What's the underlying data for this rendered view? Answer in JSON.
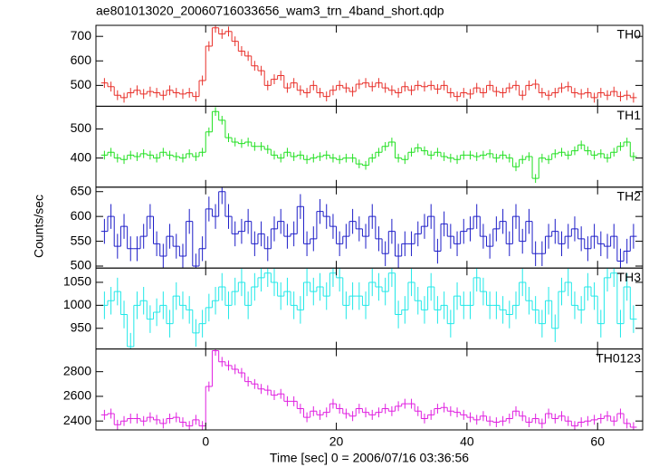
{
  "title": "ae801013020_20060716033656_wam3_trn_4band_short.qdp",
  "ylabel": "Counts/sec",
  "xlabel": "Time [sec] 0 = 2006/07/16 03:36:56",
  "chart_data": [
    {
      "type": "step",
      "name": "TH0",
      "color": "#e8302a",
      "error": 20,
      "x": [
        -15.5,
        -14.5,
        -13.5,
        -12.5,
        -11.5,
        -10.5,
        -9.5,
        -8.5,
        -7.5,
        -6.5,
        -5.5,
        -4.5,
        -3.5,
        -2.5,
        -1.5,
        -0.5,
        0.5,
        1.5,
        2.5,
        3.5,
        4.5,
        5.5,
        6.5,
        7.5,
        8.5,
        9.5,
        10.5,
        11.5,
        12.5,
        13.5,
        14.5,
        15.5,
        16.5,
        17.5,
        18.5,
        19.5,
        20.5,
        21.5,
        22.5,
        23.5,
        24.5,
        25.5,
        26.5,
        27.5,
        28.5,
        29.5,
        30.5,
        31.5,
        32.5,
        33.5,
        34.5,
        35.5,
        36.5,
        37.5,
        38.5,
        39.5,
        40.5,
        41.5,
        42.5,
        43.5,
        44.5,
        45.5,
        46.5,
        47.5,
        48.5,
        49.5,
        50.5,
        51.5,
        52.5,
        53.5,
        54.5,
        55.5,
        56.5,
        57.5,
        58.5,
        59.5,
        60.5,
        61.5,
        62.5,
        63.5,
        64.5,
        65.5
      ],
      "values": [
        510,
        495,
        460,
        450,
        470,
        480,
        465,
        475,
        470,
        460,
        480,
        470,
        465,
        470,
        455,
        520,
        660,
        735,
        710,
        720,
        680,
        640,
        620,
        580,
        560,
        500,
        525,
        540,
        490,
        510,
        480,
        470,
        500,
        470,
        455,
        480,
        500,
        490,
        475,
        505,
        510,
        495,
        510,
        490,
        480,
        470,
        495,
        480,
        500,
        495,
        500,
        485,
        500,
        470,
        455,
        470,
        465,
        490,
        470,
        500,
        475,
        470,
        490,
        500,
        460,
        500,
        505,
        470,
        460,
        470,
        490,
        495,
        470,
        465,
        470,
        450,
        470,
        460,
        475,
        455,
        460,
        450
      ],
      "xlim": [
        -16.8,
        66.9
      ],
      "xticks": [
        0,
        20,
        40,
        60
      ],
      "ylim": [
        415,
        745
      ],
      "yticks": [
        500,
        600,
        700
      ]
    },
    {
      "type": "step",
      "name": "TH1",
      "color": "#22e022",
      "error": 15,
      "x": [
        -15.5,
        -14.5,
        -13.5,
        -12.5,
        -11.5,
        -10.5,
        -9.5,
        -8.5,
        -7.5,
        -6.5,
        -5.5,
        -4.5,
        -3.5,
        -2.5,
        -1.5,
        -0.5,
        0.5,
        1.5,
        2.5,
        3.5,
        4.5,
        5.5,
        6.5,
        7.5,
        8.5,
        9.5,
        10.5,
        11.5,
        12.5,
        13.5,
        14.5,
        15.5,
        16.5,
        17.5,
        18.5,
        19.5,
        20.5,
        21.5,
        22.5,
        23.5,
        24.5,
        25.5,
        26.5,
        27.5,
        28.5,
        29.5,
        30.5,
        31.5,
        32.5,
        33.5,
        34.5,
        35.5,
        36.5,
        37.5,
        38.5,
        39.5,
        40.5,
        41.5,
        42.5,
        43.5,
        44.5,
        45.5,
        46.5,
        47.5,
        48.5,
        49.5,
        50.5,
        51.5,
        52.5,
        53.5,
        54.5,
        55.5,
        56.5,
        57.5,
        58.5,
        59.5,
        60.5,
        61.5,
        62.5,
        63.5,
        64.5,
        65.5
      ],
      "values": [
        410,
        420,
        400,
        395,
        410,
        405,
        415,
        410,
        400,
        420,
        410,
        405,
        400,
        415,
        405,
        420,
        490,
        560,
        530,
        470,
        455,
        450,
        455,
        440,
        440,
        430,
        410,
        400,
        420,
        405,
        410,
        395,
        400,
        405,
        410,
        400,
        395,
        400,
        400,
        380,
        375,
        400,
        420,
        440,
        455,
        400,
        395,
        420,
        435,
        425,
        410,
        420,
        405,
        400,
        395,
        410,
        410,
        405,
        410,
        415,
        400,
        410,
        400,
        370,
        395,
        405,
        330,
        400,
        395,
        415,
        420,
        410,
        425,
        445,
        425,
        410,
        415,
        400,
        420,
        440,
        455,
        405
      ],
      "xlim": [
        -16.8,
        66.9
      ],
      "xticks": [
        0,
        20,
        40,
        60
      ],
      "ylim": [
        300,
        578
      ],
      "yticks": [
        400,
        500
      ]
    },
    {
      "type": "step",
      "name": "TH2",
      "color": "#1e1ec8",
      "error": 25,
      "x": [
        -15.5,
        -14.5,
        -13.5,
        -12.5,
        -11.5,
        -10.5,
        -9.5,
        -8.5,
        -7.5,
        -6.5,
        -5.5,
        -4.5,
        -3.5,
        -2.5,
        -1.5,
        -0.5,
        0.5,
        1.5,
        2.5,
        3.5,
        4.5,
        5.5,
        6.5,
        7.5,
        8.5,
        9.5,
        10.5,
        11.5,
        12.5,
        13.5,
        14.5,
        15.5,
        16.5,
        17.5,
        18.5,
        19.5,
        20.5,
        21.5,
        22.5,
        23.5,
        24.5,
        25.5,
        26.5,
        27.5,
        28.5,
        29.5,
        30.5,
        31.5,
        32.5,
        33.5,
        34.5,
        35.5,
        36.5,
        37.5,
        38.5,
        39.5,
        40.5,
        41.5,
        42.5,
        43.5,
        44.5,
        45.5,
        46.5,
        47.5,
        48.5,
        49.5,
        50.5,
        51.5,
        52.5,
        53.5,
        54.5,
        55.5,
        56.5,
        57.5,
        58.5,
        59.5,
        60.5,
        61.5,
        62.5,
        63.5,
        64.5,
        65.5
      ],
      "values": [
        570,
        600,
        540,
        580,
        535,
        535,
        560,
        600,
        545,
        520,
        560,
        540,
        520,
        590,
        500,
        535,
        615,
        600,
        650,
        600,
        565,
        570,
        590,
        545,
        565,
        535,
        575,
        590,
        560,
        565,
        620,
        545,
        555,
        610,
        600,
        580,
        545,
        560,
        590,
        575,
        560,
        600,
        555,
        525,
        570,
        520,
        545,
        545,
        565,
        580,
        600,
        530,
        585,
        560,
        545,
        570,
        575,
        600,
        560,
        540,
        575,
        590,
        545,
        600,
        550,
        590,
        525,
        525,
        560,
        570,
        545,
        560,
        575,
        555,
        535,
        560,
        545,
        540,
        560,
        510,
        530,
        560
      ],
      "xlim": [
        -16.8,
        66.9
      ],
      "xticks": [
        0,
        20,
        40,
        60
      ],
      "ylim": [
        496,
        659
      ],
      "yticks": [
        500,
        550,
        600,
        650
      ]
    },
    {
      "type": "step",
      "name": "TH3",
      "color": "#20e8e8",
      "error": 30,
      "x": [
        -15.5,
        -14.5,
        -13.5,
        -12.5,
        -11.5,
        -10.5,
        -9.5,
        -8.5,
        -7.5,
        -6.5,
        -5.5,
        -4.5,
        -3.5,
        -2.5,
        -1.5,
        -0.5,
        0.5,
        1.5,
        2.5,
        3.5,
        4.5,
        5.5,
        6.5,
        7.5,
        8.5,
        9.5,
        10.5,
        11.5,
        12.5,
        13.5,
        14.5,
        15.5,
        16.5,
        17.5,
        18.5,
        19.5,
        20.5,
        21.5,
        22.5,
        23.5,
        24.5,
        25.5,
        26.5,
        27.5,
        28.5,
        29.5,
        30.5,
        31.5,
        32.5,
        33.5,
        34.5,
        35.5,
        36.5,
        37.5,
        38.5,
        39.5,
        40.5,
        41.5,
        42.5,
        43.5,
        44.5,
        45.5,
        46.5,
        47.5,
        48.5,
        49.5,
        50.5,
        51.5,
        52.5,
        53.5,
        54.5,
        55.5,
        56.5,
        57.5,
        58.5,
        59.5,
        60.5,
        61.5,
        62.5,
        63.5,
        64.5,
        65.5
      ],
      "values": [
        1000,
        1010,
        1030,
        980,
        910,
        1000,
        1010,
        970,
        985,
        1000,
        960,
        1020,
        1000,
        990,
        940,
        960,
        995,
        1010,
        1040,
        1000,
        1030,
        1050,
        1000,
        1040,
        1060,
        1070,
        1050,
        1020,
        1030,
        1000,
        990,
        1050,
        1030,
        1040,
        1020,
        1070,
        1060,
        1000,
        1020,
        1020,
        1000,
        1050,
        1040,
        1030,
        1070,
        980,
        990,
        1050,
        1010,
        990,
        1040,
        990,
        1000,
        960,
        1020,
        1000,
        1000,
        1060,
        1030,
        1000,
        1000,
        990,
        980,
        1000,
        1050,
        1010,
        990,
        960,
        1010,
        950,
        1030,
        1050,
        1000,
        990,
        1040,
        1020,
        960,
        1060,
        1070,
        960,
        1040,
        970
      ],
      "xlim": [
        -16.8,
        66.9
      ],
      "xticks": [
        0,
        20,
        40,
        60
      ],
      "ylim": [
        905,
        1081
      ],
      "yticks": [
        950,
        1000,
        1050
      ]
    },
    {
      "type": "step",
      "name": "TH0123",
      "color": "#e020e0",
      "error": 40,
      "x": [
        -15.5,
        -14.5,
        -13.5,
        -12.5,
        -11.5,
        -10.5,
        -9.5,
        -8.5,
        -7.5,
        -6.5,
        -5.5,
        -4.5,
        -3.5,
        -2.5,
        -1.5,
        -0.5,
        0.5,
        1.5,
        2.5,
        3.5,
        4.5,
        5.5,
        6.5,
        7.5,
        8.5,
        9.5,
        10.5,
        11.5,
        12.5,
        13.5,
        14.5,
        15.5,
        16.5,
        17.5,
        18.5,
        19.5,
        20.5,
        21.5,
        22.5,
        23.5,
        24.5,
        25.5,
        26.5,
        27.5,
        28.5,
        29.5,
        30.5,
        31.5,
        32.5,
        33.5,
        34.5,
        35.5,
        36.5,
        37.5,
        38.5,
        39.5,
        40.5,
        41.5,
        42.5,
        43.5,
        44.5,
        45.5,
        46.5,
        47.5,
        48.5,
        49.5,
        50.5,
        51.5,
        52.5,
        53.5,
        54.5,
        55.5,
        56.5,
        57.5,
        58.5,
        59.5,
        60.5,
        61.5,
        62.5,
        63.5,
        64.5,
        65.5
      ],
      "values": [
        2450,
        2460,
        2370,
        2400,
        2420,
        2420,
        2400,
        2430,
        2410,
        2380,
        2420,
        2430,
        2390,
        2360,
        2410,
        2360,
        2680,
        2970,
        2880,
        2850,
        2820,
        2790,
        2720,
        2700,
        2660,
        2650,
        2610,
        2620,
        2560,
        2560,
        2500,
        2430,
        2480,
        2450,
        2470,
        2540,
        2500,
        2460,
        2440,
        2500,
        2470,
        2450,
        2470,
        2500,
        2480,
        2520,
        2540,
        2540,
        2480,
        2420,
        2450,
        2500,
        2510,
        2480,
        2470,
        2450,
        2430,
        2410,
        2440,
        2400,
        2390,
        2400,
        2420,
        2480,
        2440,
        2390,
        2420,
        2380,
        2460,
        2420,
        2440,
        2400,
        2360,
        2390,
        2400,
        2410,
        2420,
        2440,
        2400,
        2460,
        2380,
        2350
      ],
      "xlim": [
        -16.8,
        66.9
      ],
      "xticks": [
        0,
        20,
        40,
        60
      ],
      "ylim": [
        2328,
        2984
      ],
      "yticks": [
        2400,
        2600,
        2800
      ]
    }
  ]
}
